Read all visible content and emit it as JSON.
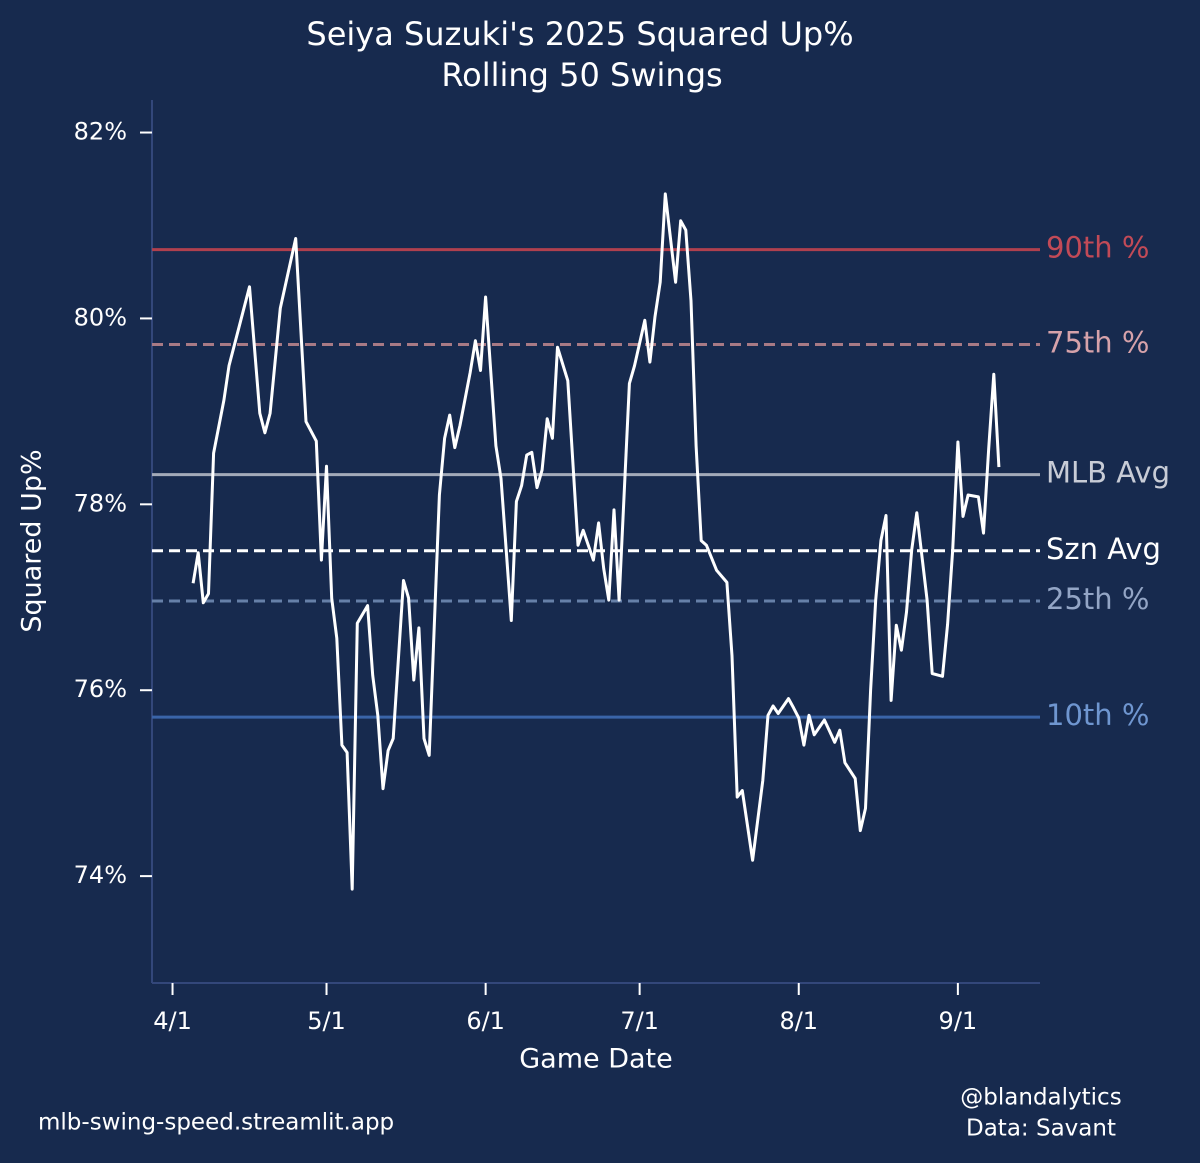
{
  "chart_data": {
    "type": "line",
    "title": "Seiya Suzuki's 2025 Squared Up%",
    "subtitle": "Rolling 50 Swings",
    "x_label": "Game Date",
    "y_label": "Squared Up%",
    "footer_left": "mlb-swing-speed.streamlit.app",
    "credit": "@blandalytics",
    "source": "Data: Savant",
    "background": "#172a4e",
    "xlim": [
      "3/28",
      "9/17"
    ],
    "xticks": [
      "4/1",
      "5/1",
      "6/1",
      "7/1",
      "8/1",
      "9/1"
    ],
    "ylim": [
      72.85,
      82.35
    ],
    "yticks": [
      {
        "value": 74,
        "label": "74%"
      },
      {
        "value": 76,
        "label": "76%"
      },
      {
        "value": 78,
        "label": "78%"
      },
      {
        "value": 80,
        "label": "80%"
      },
      {
        "value": 82,
        "label": "82%"
      }
    ],
    "x": [
      "4/5",
      "4/6",
      "4/7",
      "4/8",
      "4/9",
      "4/11",
      "4/12",
      "4/16",
      "4/18",
      "4/19",
      "4/20",
      "4/22",
      "4/25",
      "4/27",
      "4/29",
      "4/30",
      "5/1",
      "5/2",
      "5/3",
      "5/4",
      "5/5",
      "5/6",
      "5/7",
      "5/9",
      "5/10",
      "5/11",
      "5/12",
      "5/13",
      "5/14",
      "5/16",
      "5/17",
      "5/18",
      "5/19",
      "5/20",
      "5/21",
      "5/23",
      "5/24",
      "5/25",
      "5/26",
      "5/27",
      "5/29",
      "5/30",
      "5/31",
      "6/1",
      "6/3",
      "6/4",
      "6/6",
      "6/7",
      "6/8",
      "6/9",
      "6/10",
      "6/11",
      "6/12",
      "6/13",
      "6/14",
      "6/15",
      "6/17",
      "6/19",
      "6/20",
      "6/22",
      "6/23",
      "6/24",
      "6/25",
      "6/26",
      "6/27",
      "6/29",
      "6/30",
      "7/2",
      "7/3",
      "7/4",
      "7/5",
      "7/6",
      "7/8",
      "7/9",
      "7/10",
      "7/11",
      "7/12",
      "7/13",
      "7/14",
      "7/16",
      "7/18",
      "7/19",
      "7/20",
      "7/21",
      "7/22",
      "7/23",
      "7/25",
      "7/26",
      "7/27",
      "7/28",
      "7/30",
      "7/31",
      "8/1",
      "8/2",
      "8/3",
      "8/4",
      "8/6",
      "8/8",
      "8/9",
      "8/10",
      "8/12",
      "8/13",
      "8/14",
      "8/15",
      "8/16",
      "8/17",
      "8/18",
      "8/19",
      "8/20",
      "8/21",
      "8/22",
      "8/23",
      "8/24",
      "8/26",
      "8/27",
      "8/29",
      "8/30",
      "8/31",
      "9/1",
      "9/2",
      "9/3",
      "9/5",
      "9/6",
      "9/7",
      "9/8",
      "9/9"
    ],
    "series": [
      {
        "name": "Squared Up%",
        "color": "#ffffff",
        "values": [
          77.15,
          77.48,
          76.94,
          77.04,
          78.55,
          79.12,
          79.49,
          80.34,
          78.98,
          78.77,
          78.98,
          80.11,
          80.86,
          78.89,
          78.68,
          77.4,
          78.41,
          76.99,
          76.56,
          75.41,
          75.33,
          73.86,
          76.72,
          76.91,
          76.16,
          75.73,
          74.94,
          75.35,
          75.48,
          77.18,
          76.99,
          76.11,
          76.67,
          75.48,
          75.3,
          78.1,
          78.71,
          78.96,
          78.61,
          78.85,
          79.42,
          79.76,
          79.44,
          80.23,
          78.63,
          78.28,
          76.75,
          78.03,
          78.2,
          78.53,
          78.56,
          78.18,
          78.37,
          78.92,
          78.71,
          79.69,
          79.33,
          77.56,
          77.72,
          77.4,
          77.8,
          77.31,
          76.97,
          77.94,
          76.97,
          79.3,
          79.49,
          79.98,
          79.53,
          80.02,
          80.39,
          81.34,
          80.39,
          81.05,
          80.95,
          80.19,
          78.63,
          77.61,
          77.56,
          77.29,
          77.16,
          76.37,
          74.85,
          74.92,
          74.55,
          74.17,
          75.03,
          75.73,
          75.83,
          75.75,
          75.91,
          75.81,
          75.7,
          75.41,
          75.73,
          75.52,
          75.68,
          75.44,
          75.57,
          75.22,
          75.05,
          74.49,
          74.73,
          76.0,
          76.97,
          77.61,
          77.88,
          75.89,
          76.7,
          76.43,
          76.84,
          77.51,
          77.91,
          76.97,
          76.18,
          76.15,
          76.71,
          77.51,
          78.67,
          77.87,
          78.1,
          78.08,
          77.69,
          78.6,
          79.4,
          78.4
        ]
      }
    ],
    "reference_lines": [
      {
        "label": "90th %",
        "value": 80.74,
        "color": "#b0404e",
        "label_color": "#c24a57",
        "dashed": false
      },
      {
        "label": "75th %",
        "value": 79.72,
        "color": "#a87a85",
        "label_color": "#d6a2aa",
        "dashed": true
      },
      {
        "label": "MLB Avg",
        "value": 78.32,
        "color": "#a3aab9",
        "label_color": "#c8ccd6",
        "dashed": false
      },
      {
        "label": "Szn Avg",
        "value": 77.5,
        "color": "#ffffff",
        "label_color": "#ffffff",
        "dashed": true
      },
      {
        "label": "25th %",
        "value": 76.96,
        "color": "#6680a8",
        "label_color": "#93a5c5",
        "dashed": true
      },
      {
        "label": "10th %",
        "value": 75.71,
        "color": "#3a64a8",
        "label_color": "#6f96d0",
        "dashed": false
      }
    ]
  }
}
